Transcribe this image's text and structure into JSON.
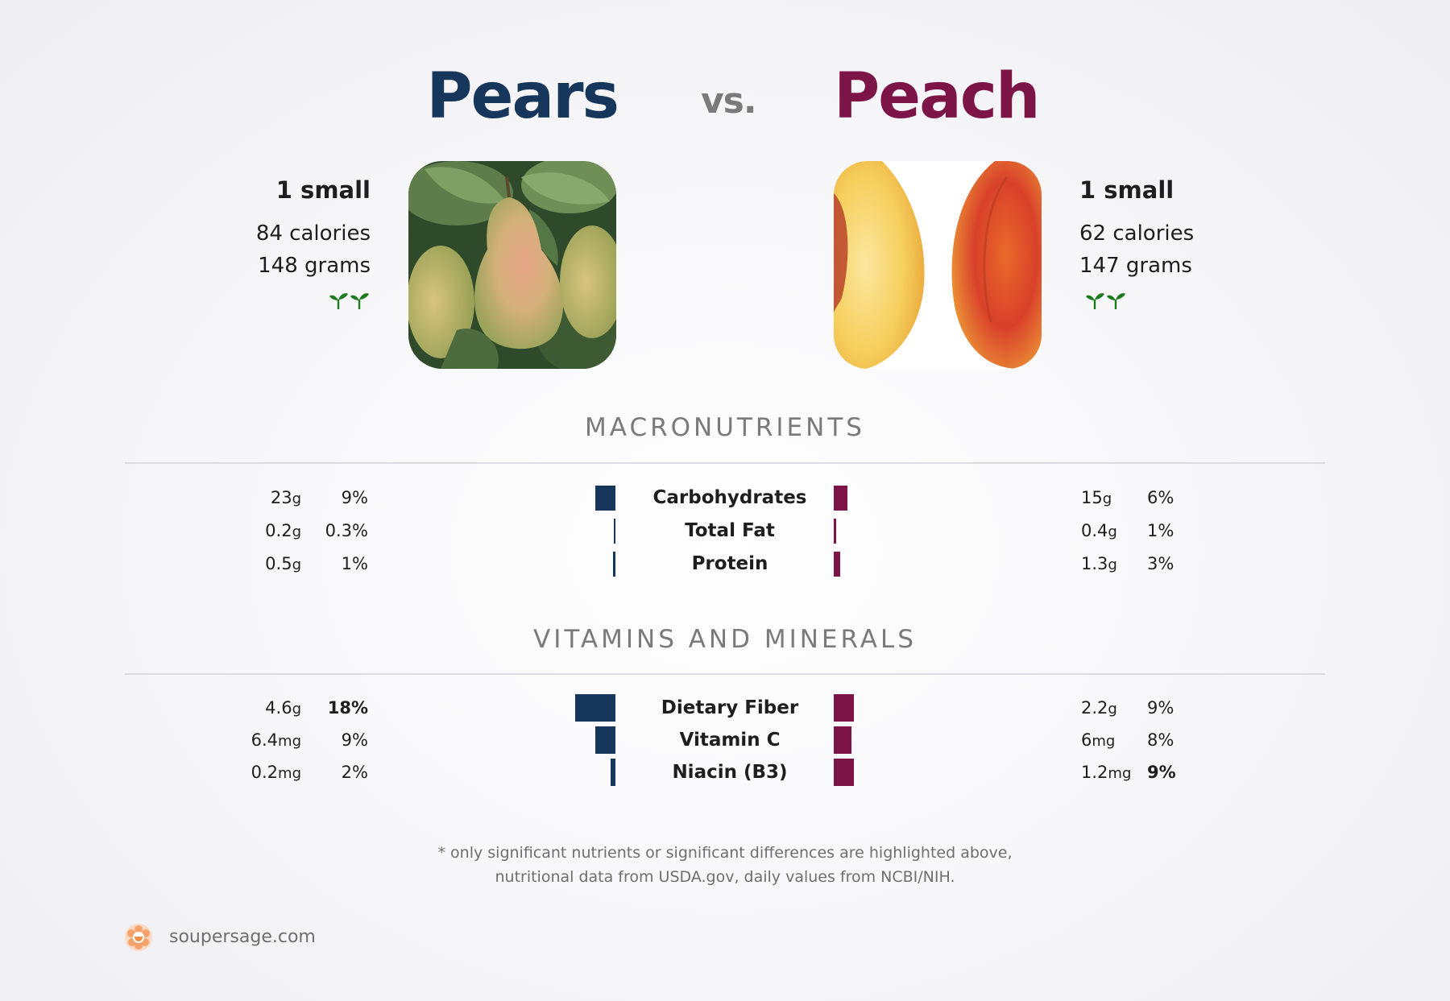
{
  "header": {
    "left_food": "Pears",
    "vs": "vs.",
    "right_food": "Peach"
  },
  "left": {
    "serving": "1 small",
    "calories": "84 calories",
    "grams": "148 grams",
    "icon": "sprout-icon",
    "color": "#16365c"
  },
  "right": {
    "serving": "1 small",
    "calories": "62 calories",
    "grams": "147 grams",
    "icon": "sprout-icon",
    "color": "#7c1448"
  },
  "sections": {
    "macro_title": "MACRONUTRIENTS",
    "vitamins_title": "VITAMINS AND MINERALS"
  },
  "footnote": {
    "line1": "* only significant nutrients or significant differences are highlighted above,",
    "line2": "nutritional data from USDA.gov, daily values from NCBI/NIH."
  },
  "brand": {
    "name": "soupersage.com",
    "logo": "soupersage-logo-icon"
  },
  "chart_data": {
    "type": "bar",
    "series": [
      {
        "name": "Pears"
      },
      {
        "name": "Peach"
      }
    ],
    "groups": [
      {
        "title": "MACRONUTRIENTS",
        "rows": [
          {
            "name": "Carbohydrates",
            "left_value": "23",
            "left_unit": "g",
            "left_pct": "9%",
            "left_pct_value": 9,
            "left_bold": false,
            "right_value": "15",
            "right_unit": "g",
            "right_pct": "6%",
            "right_pct_value": 6,
            "right_bold": false
          },
          {
            "name": "Total Fat",
            "left_value": "0.2",
            "left_unit": "g",
            "left_pct": "0.3%",
            "left_pct_value": 0.3,
            "left_bold": false,
            "right_value": "0.4",
            "right_unit": "g",
            "right_pct": "1%",
            "right_pct_value": 1,
            "right_bold": false
          },
          {
            "name": "Protein",
            "left_value": "0.5",
            "left_unit": "g",
            "left_pct": "1%",
            "left_pct_value": 1,
            "left_bold": false,
            "right_value": "1.3",
            "right_unit": "g",
            "right_pct": "3%",
            "right_pct_value": 3,
            "right_bold": false
          }
        ]
      },
      {
        "title": "VITAMINS AND MINERALS",
        "rows": [
          {
            "name": "Dietary Fiber",
            "left_value": "4.6",
            "left_unit": "g",
            "left_pct": "18%",
            "left_pct_value": 18,
            "left_bold": true,
            "right_value": "2.2",
            "right_unit": "g",
            "right_pct": "9%",
            "right_pct_value": 9,
            "right_bold": false
          },
          {
            "name": "Vitamin C",
            "left_value": "6.4",
            "left_unit": "mg",
            "left_pct": "9%",
            "left_pct_value": 9,
            "left_bold": false,
            "right_value": "6",
            "right_unit": "mg",
            "right_pct": "8%",
            "right_pct_value": 8,
            "right_bold": false
          },
          {
            "name": "Niacin (B3)",
            "left_value": "0.2",
            "left_unit": "mg",
            "left_pct": "2%",
            "left_pct_value": 2,
            "left_bold": false,
            "right_value": "1.2",
            "right_unit": "mg",
            "right_pct": "9%",
            "right_pct_value": 9,
            "right_bold": true
          }
        ]
      }
    ]
  }
}
